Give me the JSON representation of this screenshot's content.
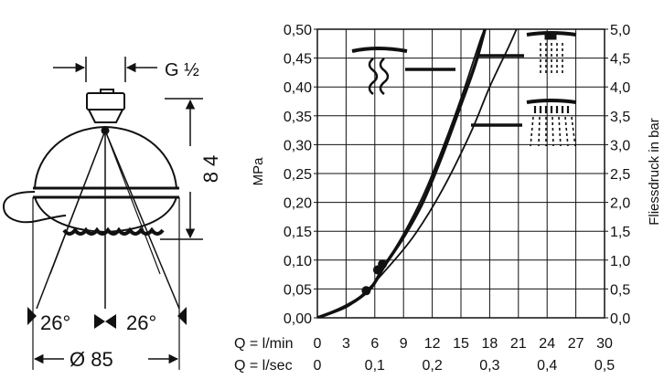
{
  "drawing": {
    "connection_label": "G ½",
    "height_value": "8 4",
    "angle_left": "26°",
    "angle_right": "26°",
    "diameter_value": "Ø 85"
  },
  "chart_data": {
    "type": "line",
    "ylabel_left": "MPa",
    "ylabel_right": "Fliessdruck in bar",
    "xlim": [
      0,
      30
    ],
    "ylim": [
      0,
      0.5
    ],
    "y_ticks_left": [
      "0,00",
      "0,05",
      "0,10",
      "0,15",
      "0,20",
      "0,25",
      "0,30",
      "0,35",
      "0,40",
      "0,45",
      "0,50"
    ],
    "y_ticks_right": [
      "0,0",
      "0,5",
      "1,0",
      "1,5",
      "2,0",
      "2,5",
      "3,0",
      "3,5",
      "4,0",
      "4,5",
      "5,0"
    ],
    "x_row1_label": "Q = l/min",
    "x_row1_ticks": [
      "0",
      "3",
      "6",
      "9",
      "12",
      "15",
      "18",
      "21",
      "24",
      "27",
      "30"
    ],
    "x_row2_label": "Q = l/sec",
    "x_row2_ticks": [
      "0",
      "0,1",
      "0,2",
      "0,3",
      "0,4",
      "0,5"
    ],
    "x_row2_values": [
      0,
      6,
      12,
      18,
      24,
      30
    ],
    "series": [
      {
        "mode": "massage",
        "thick": true,
        "points": [
          [
            0,
            0
          ],
          [
            3,
            0.02
          ],
          [
            5.5,
            0.05
          ],
          [
            7,
            0.09
          ],
          [
            9,
            0.14
          ],
          [
            11,
            0.2
          ],
          [
            13,
            0.28
          ],
          [
            15,
            0.37
          ],
          [
            16.5,
            0.44
          ],
          [
            17.5,
            0.5
          ]
        ],
        "marker": [
          6.3,
          0.083
        ]
      },
      {
        "mode": "rain",
        "thick": false,
        "points": [
          [
            0,
            0
          ],
          [
            3,
            0.022
          ],
          [
            5.5,
            0.05
          ],
          [
            7,
            0.09
          ],
          [
            9,
            0.145
          ],
          [
            11,
            0.21
          ],
          [
            13,
            0.29
          ],
          [
            15,
            0.38
          ],
          [
            17,
            0.48
          ],
          [
            17.5,
            0.5
          ]
        ],
        "marker": [
          6.8,
          0.093
        ]
      },
      {
        "mode": "whirl",
        "thick": false,
        "points": [
          [
            0,
            0
          ],
          [
            3,
            0.018
          ],
          [
            5,
            0.045
          ],
          [
            7,
            0.08
          ],
          [
            10,
            0.14
          ],
          [
            13,
            0.22
          ],
          [
            16,
            0.32
          ],
          [
            18,
            0.4
          ],
          [
            20,
            0.47
          ],
          [
            20.8,
            0.5
          ]
        ],
        "marker": [
          5.1,
          0.047
        ]
      }
    ]
  }
}
